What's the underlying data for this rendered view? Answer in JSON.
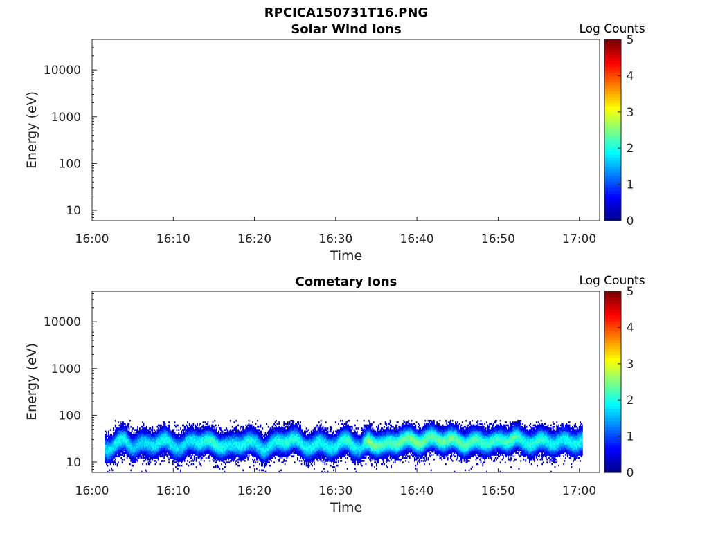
{
  "figure": {
    "title": "RPCICA150731T16.PNG"
  },
  "colors": {
    "axis": "#262626",
    "colormap": [
      "#00008f",
      "#0000ff",
      "#0080ff",
      "#00ffff",
      "#80ff80",
      "#ffff00",
      "#ff8000",
      "#ff0000",
      "#800000"
    ]
  },
  "chart_data": [
    {
      "type": "heatmap",
      "title": "Solar Wind Ions",
      "xlabel": "Time",
      "ylabel": "Energy (eV)",
      "x_ticks": [
        "16:00",
        "16:10",
        "16:20",
        "16:30",
        "16:40",
        "16:50",
        "17:00"
      ],
      "y_ticks": [
        "10",
        "100",
        "1000",
        "10000"
      ],
      "y_scale": "log",
      "ylim": [
        6,
        45000
      ],
      "xlim_minutes": [
        0,
        62.5
      ],
      "colorbar": {
        "label": "Log Counts",
        "ticks": [
          "0",
          "1",
          "2",
          "3",
          "4",
          "5"
        ],
        "range": [
          0,
          5
        ]
      },
      "data": "empty — no counts recorded"
    },
    {
      "type": "heatmap",
      "title": "Cometary Ions",
      "xlabel": "Time",
      "ylabel": "Energy (eV)",
      "x_ticks": [
        "16:00",
        "16:10",
        "16:20",
        "16:30",
        "16:40",
        "16:50",
        "17:00"
      ],
      "y_ticks": [
        "10",
        "100",
        "1000",
        "10000"
      ],
      "y_scale": "log",
      "ylim": [
        6,
        45000
      ],
      "xlim_minutes": [
        0,
        62.5
      ],
      "colorbar": {
        "label": "Log Counts",
        "ticks": [
          "0",
          "1",
          "2",
          "3",
          "4",
          "5"
        ],
        "range": [
          0,
          5
        ]
      },
      "data_time_range_minutes": [
        1.6,
        60.3
      ],
      "band": {
        "time_minutes": [
          2,
          4,
          5,
          7,
          9,
          11,
          12.5,
          15,
          17,
          19,
          21,
          23,
          24.5,
          26,
          28,
          30,
          31.5,
          33,
          34,
          36,
          38,
          40,
          42,
          44,
          46,
          48,
          50,
          52,
          53,
          55,
          57,
          60
        ],
        "peak_energy_eV": [
          20,
          30,
          22,
          25,
          28,
          20,
          30,
          25,
          21,
          28,
          20,
          26,
          32,
          22,
          24,
          22,
          30,
          18,
          28,
          22,
          30,
          28,
          32,
          30,
          26,
          28,
          27,
          34,
          26,
          28,
          27,
          28
        ],
        "peak_log_counts": [
          1.8,
          2.0,
          1.6,
          1.8,
          2.0,
          1.7,
          1.9,
          2.2,
          1.8,
          2.0,
          1.8,
          2.0,
          2.1,
          1.9,
          2.0,
          1.9,
          2.2,
          1.7,
          2.6,
          2.2,
          2.4,
          2.5,
          2.3,
          2.4,
          2.3,
          2.2,
          2.1,
          2.3,
          2.0,
          2.1,
          1.9,
          2.0
        ],
        "upper_edge_eV": 80,
        "lower_edge_eV": 6
      }
    }
  ]
}
